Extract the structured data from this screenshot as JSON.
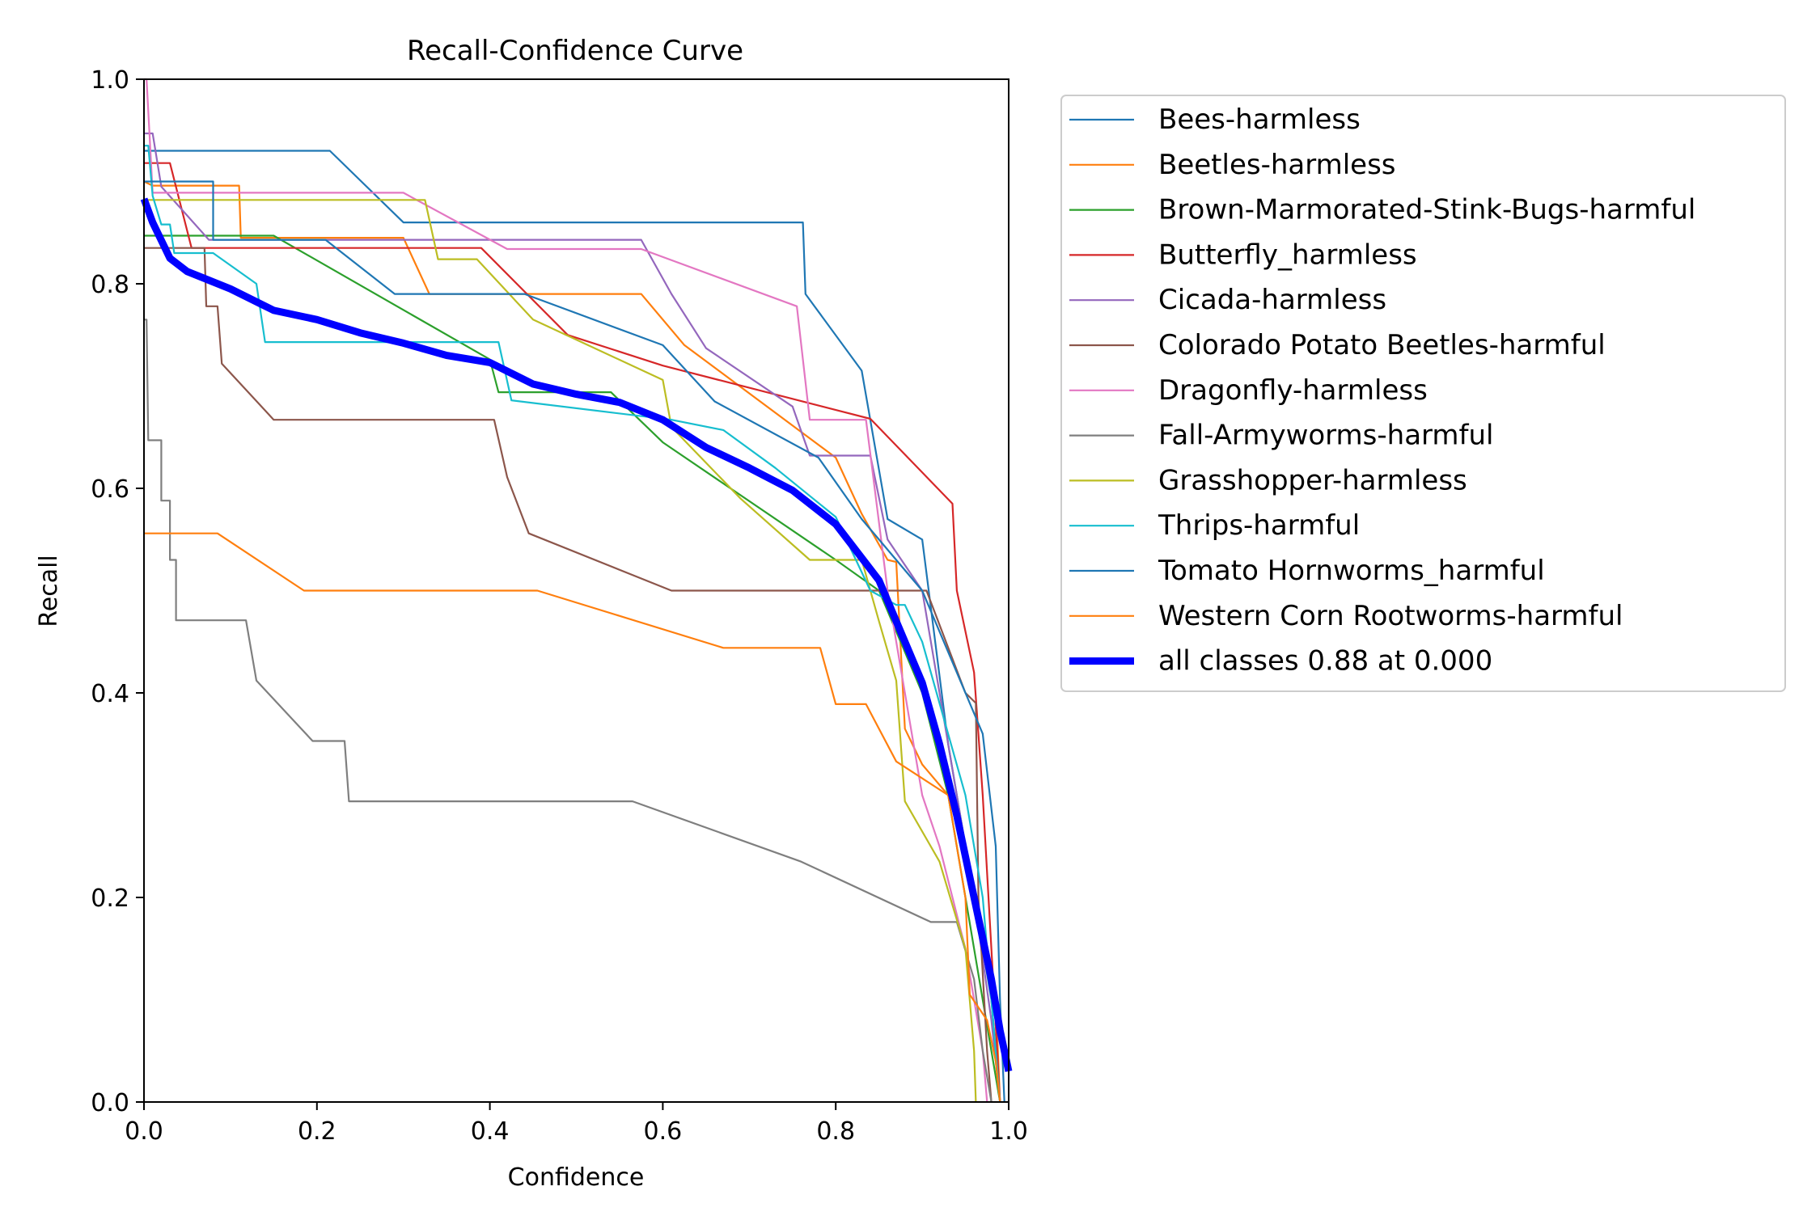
{
  "chart_data": {
    "type": "line",
    "title": "Recall-Confidence Curve",
    "xlabel": "Confidence",
    "ylabel": "Recall",
    "xlim": [
      0,
      1
    ],
    "ylim": [
      0,
      1
    ],
    "xticks": [
      "0.0",
      "0.2",
      "0.4",
      "0.6",
      "0.8",
      "1.0"
    ],
    "yticks": [
      "0.0",
      "0.2",
      "0.4",
      "0.6",
      "0.8",
      "1.0"
    ],
    "grid": false,
    "legend_position": "outside-right",
    "series": [
      {
        "name": "Bees-harmless",
        "color": "#1f77b4",
        "points": [
          [
            0,
            0.93
          ],
          [
            0.01,
            0.93
          ],
          [
            0.215,
            0.93
          ],
          [
            0.3,
            0.86
          ],
          [
            0.5,
            0.86
          ],
          [
            0.762,
            0.86
          ],
          [
            0.765,
            0.79
          ],
          [
            0.83,
            0.715
          ],
          [
            0.86,
            0.57
          ],
          [
            0.9,
            0.55
          ],
          [
            0.93,
            0.35
          ],
          [
            0.96,
            0.2
          ],
          [
            0.98,
            0.1
          ],
          [
            0.99,
            0.0
          ]
        ]
      },
      {
        "name": "Beetles-harmless",
        "color": "#ff7f0e",
        "points": [
          [
            0,
            0.9
          ],
          [
            0.01,
            0.896
          ],
          [
            0.11,
            0.896
          ],
          [
            0.112,
            0.845
          ],
          [
            0.3,
            0.845
          ],
          [
            0.33,
            0.79
          ],
          [
            0.575,
            0.79
          ],
          [
            0.625,
            0.74
          ],
          [
            0.8,
            0.63
          ],
          [
            0.83,
            0.575
          ],
          [
            0.86,
            0.53
          ],
          [
            0.87,
            0.528
          ],
          [
            0.88,
            0.365
          ],
          [
            0.9,
            0.33
          ],
          [
            0.93,
            0.3
          ],
          [
            0.95,
            0.25
          ],
          [
            0.97,
            0.15
          ],
          [
            0.985,
            0.1
          ],
          [
            0.99,
            0.0
          ]
        ]
      },
      {
        "name": "Brown-Marmorated-Stink-Bugs-harmful",
        "color": "#2ca02c",
        "points": [
          [
            0,
            0.847
          ],
          [
            0.01,
            0.847
          ],
          [
            0.15,
            0.847
          ],
          [
            0.4,
            0.726
          ],
          [
            0.41,
            0.694
          ],
          [
            0.54,
            0.694
          ],
          [
            0.6,
            0.645
          ],
          [
            0.8,
            0.53
          ],
          [
            0.85,
            0.5
          ],
          [
            0.9,
            0.4
          ],
          [
            0.93,
            0.3
          ],
          [
            0.96,
            0.15
          ],
          [
            0.98,
            0.05
          ],
          [
            0.99,
            0.0
          ]
        ]
      },
      {
        "name": "Butterfly_harmless",
        "color": "#d62728",
        "points": [
          [
            0,
            0.918
          ],
          [
            0.03,
            0.918
          ],
          [
            0.055,
            0.835
          ],
          [
            0.39,
            0.835
          ],
          [
            0.49,
            0.75
          ],
          [
            0.6,
            0.72
          ],
          [
            0.84,
            0.668
          ],
          [
            0.935,
            0.585
          ],
          [
            0.94,
            0.5
          ],
          [
            0.96,
            0.42
          ],
          [
            0.97,
            0.3
          ],
          [
            0.98,
            0.15
          ],
          [
            0.99,
            0.0
          ]
        ]
      },
      {
        "name": "Cicada-harmless",
        "color": "#9467bd",
        "points": [
          [
            0,
            0.947
          ],
          [
            0.01,
            0.947
          ],
          [
            0.02,
            0.895
          ],
          [
            0.075,
            0.843
          ],
          [
            0.575,
            0.843
          ],
          [
            0.61,
            0.79
          ],
          [
            0.65,
            0.737
          ],
          [
            0.75,
            0.68
          ],
          [
            0.77,
            0.632
          ],
          [
            0.84,
            0.632
          ],
          [
            0.86,
            0.55
          ],
          [
            0.9,
            0.5
          ],
          [
            0.93,
            0.35
          ],
          [
            0.96,
            0.2
          ],
          [
            0.98,
            0.08
          ],
          [
            0.99,
            0.0
          ]
        ]
      },
      {
        "name": "Colorado Potato Beetles-harmful",
        "color": "#8c564b",
        "points": [
          [
            0,
            0.835
          ],
          [
            0.015,
            0.835
          ],
          [
            0.07,
            0.835
          ],
          [
            0.072,
            0.778
          ],
          [
            0.085,
            0.778
          ],
          [
            0.09,
            0.722
          ],
          [
            0.15,
            0.667
          ],
          [
            0.405,
            0.667
          ],
          [
            0.42,
            0.611
          ],
          [
            0.445,
            0.556
          ],
          [
            0.61,
            0.5
          ],
          [
            0.85,
            0.5
          ],
          [
            0.905,
            0.5
          ],
          [
            0.95,
            0.4
          ],
          [
            0.962,
            0.39
          ],
          [
            0.965,
            0.2
          ],
          [
            0.975,
            0.05
          ],
          [
            0.98,
            0.0
          ]
        ]
      },
      {
        "name": "Dragonfly-harmless",
        "color": "#e377c2",
        "points": [
          [
            0,
            1.0
          ],
          [
            0.003,
            1.0
          ],
          [
            0.01,
            0.889
          ],
          [
            0.3,
            0.889
          ],
          [
            0.42,
            0.834
          ],
          [
            0.575,
            0.834
          ],
          [
            0.755,
            0.778
          ],
          [
            0.77,
            0.667
          ],
          [
            0.835,
            0.667
          ],
          [
            0.86,
            0.5
          ],
          [
            0.9,
            0.3
          ],
          [
            0.92,
            0.25
          ],
          [
            0.95,
            0.15
          ],
          [
            0.97,
            0.05
          ],
          [
            0.975,
            0.0
          ]
        ]
      },
      {
        "name": "Fall-Armyworms-harmful",
        "color": "#7f7f7f",
        "points": [
          [
            0,
            0.765
          ],
          [
            0.003,
            0.765
          ],
          [
            0.005,
            0.647
          ],
          [
            0.02,
            0.647
          ],
          [
            0.02,
            0.588
          ],
          [
            0.03,
            0.588
          ],
          [
            0.03,
            0.53
          ],
          [
            0.037,
            0.53
          ],
          [
            0.037,
            0.471
          ],
          [
            0.118,
            0.471
          ],
          [
            0.13,
            0.412
          ],
          [
            0.195,
            0.353
          ],
          [
            0.232,
            0.353
          ],
          [
            0.237,
            0.294
          ],
          [
            0.565,
            0.294
          ],
          [
            0.76,
            0.235
          ],
          [
            0.91,
            0.176
          ],
          [
            0.94,
            0.176
          ],
          [
            0.96,
            0.12
          ],
          [
            0.97,
            0.05
          ],
          [
            0.98,
            0.0
          ]
        ]
      },
      {
        "name": "Grasshopper-harmless",
        "color": "#bcbd22",
        "points": [
          [
            0,
            0.882
          ],
          [
            0.01,
            0.882
          ],
          [
            0.325,
            0.882
          ],
          [
            0.34,
            0.824
          ],
          [
            0.385,
            0.824
          ],
          [
            0.45,
            0.765
          ],
          [
            0.6,
            0.706
          ],
          [
            0.61,
            0.66
          ],
          [
            0.69,
            0.59
          ],
          [
            0.77,
            0.53
          ],
          [
            0.83,
            0.53
          ],
          [
            0.85,
            0.47
          ],
          [
            0.87,
            0.412
          ],
          [
            0.88,
            0.294
          ],
          [
            0.92,
            0.235
          ],
          [
            0.95,
            0.15
          ],
          [
            0.96,
            0.05
          ],
          [
            0.962,
            0.0
          ]
        ]
      },
      {
        "name": "Thrips-harmful",
        "color": "#17becf",
        "points": [
          [
            0,
            0.935
          ],
          [
            0.005,
            0.935
          ],
          [
            0.01,
            0.886
          ],
          [
            0.02,
            0.858
          ],
          [
            0.03,
            0.858
          ],
          [
            0.035,
            0.83
          ],
          [
            0.08,
            0.83
          ],
          [
            0.13,
            0.8
          ],
          [
            0.14,
            0.743
          ],
          [
            0.41,
            0.743
          ],
          [
            0.425,
            0.686
          ],
          [
            0.61,
            0.667
          ],
          [
            0.67,
            0.657
          ],
          [
            0.73,
            0.62
          ],
          [
            0.8,
            0.572
          ],
          [
            0.84,
            0.5
          ],
          [
            0.87,
            0.486
          ],
          [
            0.88,
            0.486
          ],
          [
            0.9,
            0.45
          ],
          [
            0.95,
            0.3
          ],
          [
            0.97,
            0.2
          ],
          [
            0.98,
            0.1
          ],
          [
            0.99,
            0.0
          ]
        ]
      },
      {
        "name": "Tomato Hornworms_harmful",
        "color": "#1f77b4",
        "points": [
          [
            0,
            0.9
          ],
          [
            0.01,
            0.9
          ],
          [
            0.08,
            0.9
          ],
          [
            0.08,
            0.843
          ],
          [
            0.21,
            0.843
          ],
          [
            0.29,
            0.79
          ],
          [
            0.44,
            0.79
          ],
          [
            0.6,
            0.74
          ],
          [
            0.66,
            0.685
          ],
          [
            0.78,
            0.63
          ],
          [
            0.83,
            0.57
          ],
          [
            0.9,
            0.5
          ],
          [
            0.97,
            0.36
          ],
          [
            0.985,
            0.25
          ],
          [
            0.99,
            0.1
          ],
          [
            0.995,
            0.0
          ]
        ]
      },
      {
        "name": "Western Corn Rootworms-harmful",
        "color": "#ff7f0e",
        "points": [
          [
            0,
            0.556
          ],
          [
            0.085,
            0.556
          ],
          [
            0.185,
            0.5
          ],
          [
            0.455,
            0.5
          ],
          [
            0.67,
            0.444
          ],
          [
            0.782,
            0.444
          ],
          [
            0.8,
            0.389
          ],
          [
            0.835,
            0.389
          ],
          [
            0.87,
            0.333
          ],
          [
            0.93,
            0.3
          ],
          [
            0.95,
            0.2
          ],
          [
            0.955,
            0.105
          ],
          [
            0.975,
            0.08
          ],
          [
            0.985,
            0.04
          ],
          [
            0.99,
            0.0
          ]
        ]
      }
    ],
    "summary_series": {
      "name": "all classes 0.88 at 0.000",
      "color": "#0000ff",
      "points": [
        [
          0,
          0.883
        ],
        [
          0.01,
          0.86
        ],
        [
          0.03,
          0.825
        ],
        [
          0.05,
          0.812
        ],
        [
          0.1,
          0.795
        ],
        [
          0.15,
          0.774
        ],
        [
          0.2,
          0.765
        ],
        [
          0.25,
          0.752
        ],
        [
          0.3,
          0.742
        ],
        [
          0.35,
          0.73
        ],
        [
          0.4,
          0.723
        ],
        [
          0.45,
          0.702
        ],
        [
          0.5,
          0.692
        ],
        [
          0.55,
          0.684
        ],
        [
          0.6,
          0.667
        ],
        [
          0.65,
          0.64
        ],
        [
          0.7,
          0.62
        ],
        [
          0.75,
          0.598
        ],
        [
          0.8,
          0.565
        ],
        [
          0.85,
          0.51
        ],
        [
          0.88,
          0.45
        ],
        [
          0.9,
          0.41
        ],
        [
          0.92,
          0.35
        ],
        [
          0.94,
          0.28
        ],
        [
          0.96,
          0.2
        ],
        [
          0.98,
          0.12
        ],
        [
          0.99,
          0.07
        ],
        [
          1.0,
          0.03
        ]
      ]
    }
  }
}
